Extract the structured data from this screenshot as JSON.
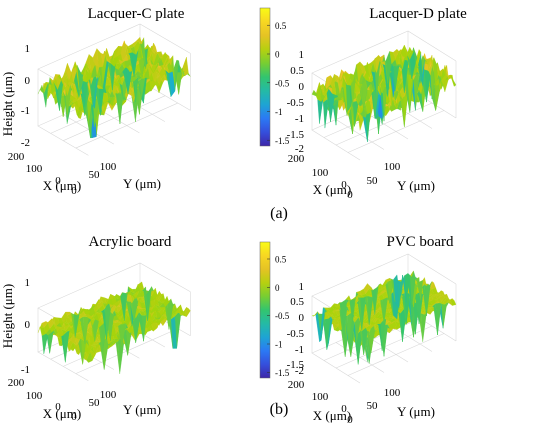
{
  "figure_labels": [
    "(a)",
    "(b)"
  ],
  "colorbar_a": {
    "ticks": [
      "0.5",
      "0",
      "-0.5",
      "-1",
      "-1.5"
    ]
  },
  "colorbar_b": {
    "ticks": [
      "0.5",
      "0",
      "-0.5",
      "-1",
      "-1.5"
    ]
  },
  "colors": {
    "colormap": [
      "#3e26a8",
      "#2f6bff",
      "#1ab2c9",
      "#33c56e",
      "#a6d40a",
      "#f5bf2a",
      "#f9fb15"
    ]
  },
  "chart_data": [
    {
      "type": "surface",
      "title": "Lacquer-C plate",
      "zlabel": "Height (μm)",
      "xlabel": "X (μm)",
      "ylabel": "Y (μm)",
      "zticks": [
        "1",
        "0",
        "-1",
        "-2"
      ],
      "xticks": [
        "200",
        "100",
        "0"
      ],
      "yticks": [
        "0",
        "50",
        "100"
      ],
      "zlim": [
        -2,
        1
      ],
      "xlim": [
        0,
        200
      ],
      "ylim": [
        0,
        100
      ],
      "height_range": [
        -1.5,
        0.8
      ],
      "roughness": 0.45,
      "clim": [
        -1.6,
        0.8
      ]
    },
    {
      "type": "surface",
      "title": "Lacquer-D plate",
      "zlabel": "",
      "xlabel": "X (μm)",
      "ylabel": "Y (μm)",
      "zticks": [
        "1",
        "0.5",
        "0",
        "-0.5",
        "-1",
        "-1.5",
        "-2"
      ],
      "xticks": [
        "200",
        "100",
        "0"
      ],
      "yticks": [
        "0",
        "50",
        "100"
      ],
      "zlim": [
        -2,
        1
      ],
      "xlim": [
        0,
        200
      ],
      "ylim": [
        0,
        100
      ],
      "height_range": [
        -1.8,
        0.8
      ],
      "roughness": 0.55,
      "clim": [
        -1.6,
        0.8
      ]
    },
    {
      "type": "surface",
      "title": "Acrylic board",
      "zlabel": "Height (μm)",
      "xlabel": "X (μm)",
      "ylabel": "Y (μm)",
      "zticks": [
        "1",
        "0",
        "-1"
      ],
      "xticks": [
        "200",
        "100",
        "0"
      ],
      "yticks": [
        "0",
        "50",
        "100"
      ],
      "zlim": [
        -1,
        1
      ],
      "xlim": [
        0,
        200
      ],
      "ylim": [
        0,
        100
      ],
      "height_range": [
        -1.4,
        0.4
      ],
      "roughness": 0.25,
      "clim": [
        -1.6,
        0.8
      ]
    },
    {
      "type": "surface",
      "title": "PVC board",
      "zlabel": "",
      "xlabel": "X (μm)",
      "ylabel": "Y (μm)",
      "zticks": [
        "1",
        "0.5",
        "0",
        "-0.5",
        "-1",
        "-1.5",
        "-2"
      ],
      "xticks": [
        "200",
        "100",
        "0"
      ],
      "yticks": [
        "0",
        "50",
        "100"
      ],
      "zlim": [
        -2,
        1
      ],
      "xlim": [
        0,
        200
      ],
      "ylim": [
        0,
        100
      ],
      "height_range": [
        -1.6,
        0.4
      ],
      "roughness": 0.15,
      "clim": [
        -1.6,
        0.8
      ]
    }
  ]
}
